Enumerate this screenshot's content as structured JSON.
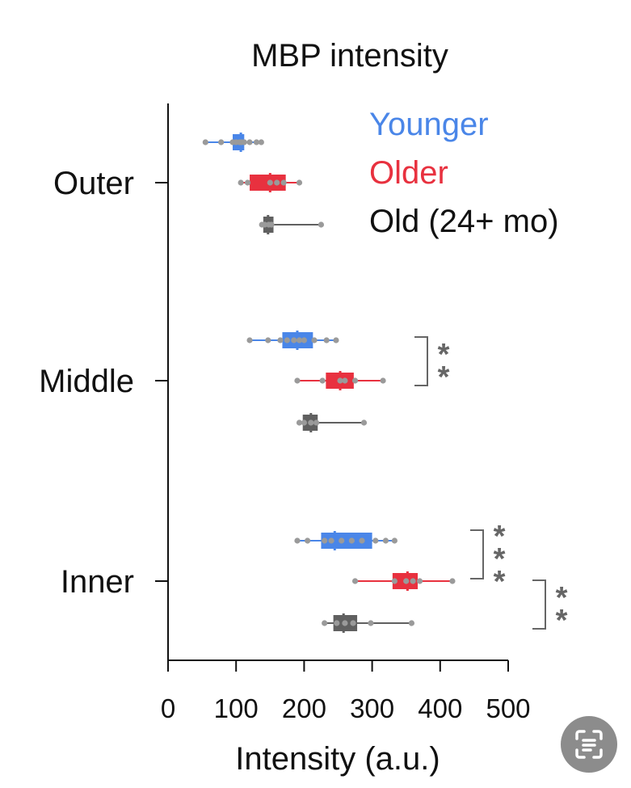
{
  "chart_data": {
    "type": "box",
    "orientation": "horizontal",
    "title": "MBP intensity",
    "xlabel": "Intensity (a.u.)",
    "ylabel": "",
    "xlim": [
      0,
      500
    ],
    "xticks": [
      0,
      100,
      200,
      300,
      400,
      500
    ],
    "categories": [
      "Outer",
      "Middle",
      "Inner"
    ],
    "legend_position": "top-right",
    "series": [
      {
        "name": "Younger",
        "color": "#4a86e8",
        "boxes": [
          {
            "category": "Outer",
            "whisker_low": 55,
            "q1": 95,
            "median": 107,
            "q3": 112,
            "whisker_high": 137,
            "points": [
              55,
              78,
              95,
              100,
              105,
              108,
              112,
              120,
              130,
              137
            ]
          },
          {
            "category": "Middle",
            "whisker_low": 120,
            "q1": 168,
            "median": 190,
            "q3": 213,
            "whisker_high": 247,
            "points": [
              120,
              147,
              165,
              175,
              185,
              193,
              200,
              215,
              233,
              247
            ]
          },
          {
            "category": "Inner",
            "whisker_low": 190,
            "q1": 225,
            "median": 245,
            "q3": 300,
            "whisker_high": 333,
            "points": [
              190,
              205,
              230,
              240,
              255,
              270,
              285,
              305,
              320,
              333
            ]
          }
        ]
      },
      {
        "name": "Older",
        "color": "#e8313f",
        "boxes": [
          {
            "category": "Outer",
            "whisker_low": 107,
            "q1": 120,
            "median": 150,
            "q3": 173,
            "whisker_high": 193,
            "points": [
              107,
              117,
              150,
              160,
              170,
              193
            ]
          },
          {
            "category": "Middle",
            "whisker_low": 190,
            "q1": 232,
            "median": 253,
            "q3": 273,
            "whisker_high": 316,
            "points": [
              190,
              227,
              253,
              260,
              275,
              316
            ]
          },
          {
            "category": "Inner",
            "whisker_low": 275,
            "q1": 330,
            "median": 352,
            "q3": 367,
            "whisker_high": 418,
            "points": [
              275,
              333,
              350,
              360,
              370,
              418
            ]
          }
        ]
      },
      {
        "name": "Old (24+ mo)",
        "color": "#606060",
        "boxes": [
          {
            "category": "Outer",
            "whisker_low": 138,
            "q1": 140,
            "median": 147,
            "q3": 155,
            "whisker_high": 225,
            "points": [
              138,
              142,
              148,
              152,
              225
            ]
          },
          {
            "category": "Middle",
            "whisker_low": 193,
            "q1": 198,
            "median": 210,
            "q3": 220,
            "whisker_high": 288,
            "points": [
              193,
              200,
              210,
              218,
              288
            ]
          },
          {
            "category": "Inner",
            "whisker_low": 230,
            "q1": 243,
            "median": 258,
            "q3": 278,
            "whisker_high": 358,
            "points": [
              230,
              248,
              260,
              272,
              298,
              358
            ]
          }
        ]
      }
    ],
    "significance": [
      {
        "category": "Middle",
        "from": "Younger",
        "to": "Older",
        "label": "**"
      },
      {
        "category": "Inner",
        "from": "Younger",
        "to": "Older",
        "label": "***"
      },
      {
        "category": "Inner",
        "from": "Older",
        "to": "Old (24+ mo)",
        "label": "**"
      }
    ]
  },
  "colors": {
    "axis": "#111111",
    "point": "#9a9a9a",
    "bracket": "#666666",
    "scan_button": "#8c8c8c"
  },
  "overlay": {
    "scan_button_icon": "scan-text-icon"
  }
}
